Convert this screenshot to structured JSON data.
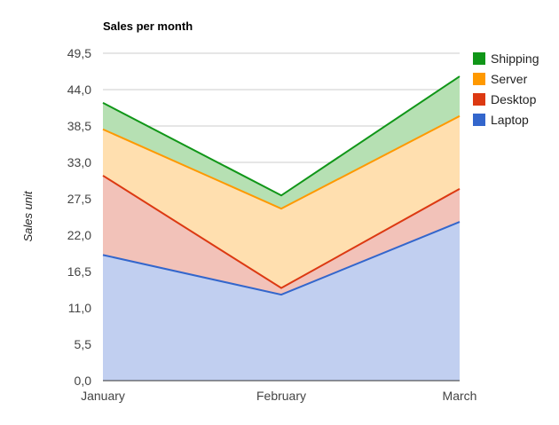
{
  "chart_data": {
    "type": "area",
    "stacked": true,
    "title": "Sales per month",
    "xlabel": "",
    "ylabel": "Sales unit",
    "categories": [
      "January",
      "February",
      "March"
    ],
    "y_ticks": [
      "0,0",
      "5,5",
      "11,0",
      "16,5",
      "22,0",
      "27,5",
      "33,0",
      "38,5",
      "44,0",
      "49,5"
    ],
    "y_tick_values": [
      0,
      5.5,
      11,
      16.5,
      22,
      27.5,
      33,
      38.5,
      44,
      49.5
    ],
    "ylim": [
      0,
      49.5
    ],
    "grid": true,
    "legend_position": "right",
    "series": [
      {
        "name": "Laptop",
        "values": [
          19,
          13,
          24
        ],
        "color": "#3366cc",
        "fill": "#c1cff0"
      },
      {
        "name": "Desktop",
        "values": [
          12,
          1,
          5
        ],
        "color": "#dc3912",
        "fill": "#f2c2b9"
      },
      {
        "name": "Server",
        "values": [
          7,
          12,
          11
        ],
        "color": "#ff9900",
        "fill": "#ffdfaf"
      },
      {
        "name": "Shipping",
        "values": [
          4,
          2,
          6
        ],
        "color": "#109618",
        "fill": "#b6e0b3"
      }
    ],
    "legend_order": [
      "Shipping",
      "Server",
      "Desktop",
      "Laptop"
    ]
  }
}
